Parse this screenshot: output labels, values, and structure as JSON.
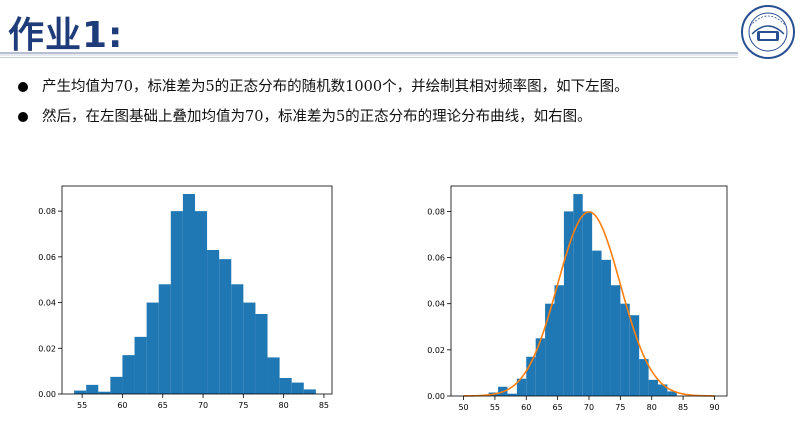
{
  "page": {
    "title": "作业1:",
    "bullets": [
      "产生均值为70，标准差为5的正态分布的随机数1000个，并绘制其相对频率图，如下左图。",
      "然后，在左图基础上叠加均值为70，标准差为5的正态分布的理论分布曲线，如右图。"
    ]
  },
  "colors": {
    "title": "#1f3c7a",
    "bar": "#1f77b4",
    "curve": "#ff7f0e"
  },
  "chart_data": [
    {
      "type": "bar",
      "title": "",
      "xlabel": "",
      "ylabel": "",
      "bin_edges": [
        54,
        55.5,
        57,
        58.5,
        60,
        61.5,
        63,
        64.5,
        66,
        67.5,
        69,
        70.5,
        72,
        73.5,
        75,
        76.5,
        78,
        79.5,
        81,
        82.5,
        84
      ],
      "values": [
        0.0015,
        0.004,
        0.001,
        0.0075,
        0.017,
        0.025,
        0.04,
        0.048,
        0.08,
        0.0875,
        0.08,
        0.063,
        0.059,
        0.048,
        0.04,
        0.035,
        0.016,
        0.007,
        0.005,
        0.002
      ],
      "xlim": [
        52.5,
        86
      ],
      "ylim": [
        0,
        0.091
      ],
      "xticks": [
        55,
        60,
        65,
        70,
        75,
        80,
        85
      ],
      "yticks": [
        0,
        0.02,
        0.04,
        0.06,
        0.08
      ],
      "xtick_labels": [
        "55",
        "60",
        "65",
        "70",
        "75",
        "80",
        "85"
      ],
      "ytick_labels": [
        "0.00",
        "0.02",
        "0.04",
        "0.06",
        "0.08"
      ],
      "grid": false
    },
    {
      "type": "bar",
      "title": "",
      "xlabel": "",
      "ylabel": "",
      "bin_edges": [
        54,
        55.5,
        57,
        58.5,
        60,
        61.5,
        63,
        64.5,
        66,
        67.5,
        69,
        70.5,
        72,
        73.5,
        75,
        76.5,
        78,
        79.5,
        81,
        82.5,
        84
      ],
      "values": [
        0.0015,
        0.004,
        0.001,
        0.0075,
        0.017,
        0.025,
        0.04,
        0.048,
        0.08,
        0.0875,
        0.08,
        0.063,
        0.059,
        0.048,
        0.04,
        0.035,
        0.016,
        0.007,
        0.005,
        0.002
      ],
      "overlay_curve": {
        "type": "normal_pdf",
        "mean": 70,
        "std": 5,
        "x_range": [
          50,
          90
        ]
      },
      "xlim": [
        48,
        92
      ],
      "ylim": [
        0,
        0.091
      ],
      "xticks": [
        50,
        55,
        60,
        65,
        70,
        75,
        80,
        85,
        90
      ],
      "yticks": [
        0,
        0.02,
        0.04,
        0.06,
        0.08
      ],
      "xtick_labels": [
        "50",
        "55",
        "60",
        "65",
        "70",
        "75",
        "80",
        "85",
        "90"
      ],
      "ytick_labels": [
        "0.00",
        "0.02",
        "0.04",
        "0.06",
        "0.08"
      ],
      "grid": false
    }
  ]
}
